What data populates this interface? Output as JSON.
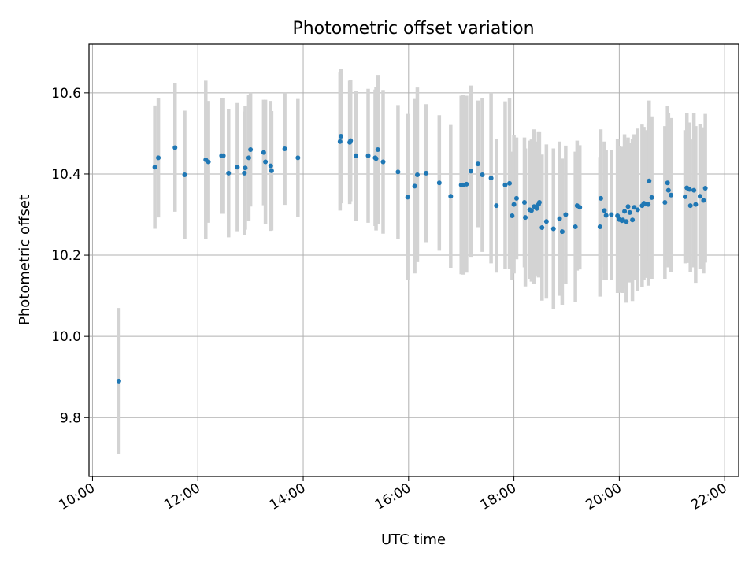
{
  "chart_data": {
    "type": "scatter",
    "title": "Photometric offset variation",
    "xlabel": "UTC time",
    "ylabel": "Photometric offset",
    "xlim": [
      "09:56",
      "22:16"
    ],
    "ylim": [
      9.655,
      10.72
    ],
    "x_ticks": [
      "10:00",
      "12:00",
      "14:00",
      "16:00",
      "18:00",
      "20:00",
      "22:00"
    ],
    "y_ticks": [
      9.8,
      10.0,
      10.2,
      10.4,
      10.6
    ],
    "y_tick_labels": [
      "9.8",
      "10.0",
      "10.2",
      "10.4",
      "10.6"
    ],
    "grid": true,
    "colors": {
      "points": "#1f77b4",
      "error_bars": "#d3d3d3",
      "grid": "#b0b0b0"
    },
    "series": [
      {
        "x": [
          "10:30",
          "11:11",
          "11:15",
          "11:34",
          "11:45",
          "12:09",
          "12:12",
          "12:27",
          "12:29",
          "12:35",
          "12:45",
          "12:53",
          "12:54",
          "12:58",
          "13:00",
          "13:15",
          "13:17",
          "13:23",
          "13:24",
          "13:39",
          "13:54",
          "14:42",
          "14:43",
          "14:53",
          "14:54",
          "15:00",
          "15:14",
          "15:22",
          "15:23",
          "15:25",
          "15:31",
          "15:48",
          "15:59",
          "16:07",
          "16:10",
          "16:20",
          "16:35",
          "16:48",
          "17:00",
          "17:02",
          "17:06",
          "17:11",
          "17:19",
          "17:24",
          "17:34",
          "17:40",
          "17:50",
          "17:55",
          "17:58",
          "18:00",
          "18:03",
          "18:12",
          "18:13",
          "18:18",
          "18:20",
          "18:23",
          "18:26",
          "18:28",
          "18:29",
          "18:32",
          "18:37",
          "18:45",
          "18:52",
          "18:55",
          "18:59",
          "19:10",
          "19:12",
          "19:15",
          "19:38",
          "19:39",
          "19:43",
          "19:45",
          "19:51",
          "19:58",
          "20:00",
          "20:03",
          "20:04",
          "20:06",
          "20:08",
          "20:10",
          "20:12",
          "20:15",
          "20:17",
          "20:21",
          "20:26",
          "20:28",
          "20:30",
          "20:33",
          "20:34",
          "20:37",
          "20:52",
          "20:55",
          "20:56",
          "20:59",
          "21:15",
          "21:17",
          "21:20",
          "21:21",
          "21:25",
          "21:27",
          "21:32",
          "21:36",
          "21:38"
        ],
        "y": [
          9.89,
          10.417,
          10.44,
          10.465,
          10.398,
          10.435,
          10.43,
          10.445,
          10.445,
          10.402,
          10.417,
          10.402,
          10.415,
          10.44,
          10.46,
          10.453,
          10.43,
          10.42,
          10.408,
          10.462,
          10.44,
          10.48,
          10.493,
          10.478,
          10.482,
          10.445,
          10.445,
          10.44,
          10.438,
          10.46,
          10.43,
          10.405,
          10.343,
          10.37,
          10.398,
          10.402,
          10.378,
          10.345,
          10.373,
          10.373,
          10.375,
          10.407,
          10.425,
          10.398,
          10.39,
          10.322,
          10.373,
          10.377,
          10.297,
          10.325,
          10.34,
          10.33,
          10.293,
          10.312,
          10.31,
          10.32,
          10.315,
          10.325,
          10.33,
          10.268,
          10.283,
          10.265,
          10.29,
          10.258,
          10.3,
          10.27,
          10.322,
          10.318,
          10.27,
          10.34,
          10.31,
          10.298,
          10.3,
          10.297,
          10.288,
          10.285,
          10.287,
          10.308,
          10.283,
          10.32,
          10.305,
          10.287,
          10.318,
          10.312,
          10.322,
          10.328,
          10.326,
          10.325,
          10.383,
          10.342,
          10.33,
          10.378,
          10.36,
          10.348,
          10.344,
          10.366,
          10.362,
          10.322,
          10.36,
          10.325,
          10.345,
          10.335,
          10.365
        ],
        "yerr": [
          0.18,
          0.152,
          0.147,
          0.158,
          0.158,
          0.195,
          0.15,
          0.143,
          0.143,
          0.158,
          0.158,
          0.152,
          0.152,
          0.155,
          0.14,
          0.13,
          0.153,
          0.16,
          0.147,
          0.138,
          0.145,
          0.17,
          0.165,
          0.152,
          0.149,
          0.16,
          0.165,
          0.168,
          0.177,
          0.184,
          0.177,
          0.165,
          0.205,
          0.215,
          0.215,
          0.17,
          0.167,
          0.176,
          0.22,
          0.221,
          0.218,
          0.211,
          0.156,
          0.19,
          0.21,
          0.165,
          0.206,
          0.21,
          0.158,
          0.17,
          0.15,
          0.16,
          0.17,
          0.17,
          0.175,
          0.19,
          0.165,
          0.18,
          0.175,
          0.18,
          0.19,
          0.198,
          0.19,
          0.18,
          0.17,
          0.185,
          0.16,
          0.153,
          0.172,
          0.17,
          0.17,
          0.16,
          0.16,
          0.19,
          0.18,
          0.178,
          0.18,
          0.19,
          0.2,
          0.17,
          0.172,
          0.2,
          0.18,
          0.2,
          0.2,
          0.188,
          0.182,
          0.2,
          0.198,
          0.2,
          0.188,
          0.19,
          0.19,
          0.19,
          0.164,
          0.185,
          0.165,
          0.163,
          0.19,
          0.193,
          0.178,
          0.18,
          0.183
        ]
      }
    ]
  }
}
